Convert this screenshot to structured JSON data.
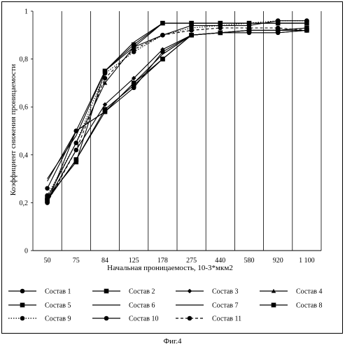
{
  "chart_data": {
    "type": "line",
    "title": "",
    "xlabel": "Начальная проницаемость, 10-3*мкм2",
    "ylabel": "Коэффициент снижения проницаемости",
    "categories": [
      "50",
      "75",
      "84",
      "125",
      "178",
      "275",
      "440",
      "580",
      "920",
      "1 100"
    ],
    "ylim": [
      0,
      1
    ],
    "yticks": [
      "0",
      "0,2",
      "0,4",
      "0,6",
      "0,8",
      "1"
    ],
    "grid": "vertical",
    "legend_placement": "bottom",
    "series": [
      {
        "name": "Состав 1",
        "marker": "circle",
        "dash": "solid",
        "values": [
          0.2,
          0.5,
          0.58,
          0.68,
          0.83,
          0.9,
          0.91,
          0.91,
          0.91,
          0.92
        ]
      },
      {
        "name": "Состав 2",
        "marker": "square",
        "dash": "solid",
        "values": [
          0.21,
          0.38,
          0.58,
          0.7,
          0.8,
          0.9,
          0.91,
          0.92,
          0.92,
          0.92
        ]
      },
      {
        "name": "Состав 3",
        "marker": "diamond",
        "dash": "solid",
        "values": [
          0.21,
          0.42,
          0.61,
          0.72,
          0.84,
          0.9,
          0.91,
          0.92,
          0.92,
          0.93
        ]
      },
      {
        "name": "Состав 4",
        "marker": "triangle",
        "dash": "solid",
        "values": [
          0.22,
          0.45,
          0.7,
          0.85,
          0.95,
          0.95,
          0.95,
          0.95,
          0.95,
          0.95
        ]
      },
      {
        "name": "Состав 5",
        "marker": "square",
        "dash": "solid",
        "values": [
          0.22,
          0.37,
          0.75,
          0.86,
          0.95,
          0.95,
          0.95,
          0.95,
          0.95,
          0.95
        ]
      },
      {
        "name": "Состав 6",
        "marker": "none",
        "dash": "solid",
        "values": [
          0.3,
          0.48,
          0.75,
          0.87,
          0.95,
          0.95,
          0.95,
          0.95,
          0.95,
          0.95
        ]
      },
      {
        "name": "Состав 7",
        "marker": "none",
        "dash": "solid",
        "values": [
          0.29,
          0.5,
          0.58,
          0.7,
          0.82,
          0.9,
          0.91,
          0.91,
          0.91,
          0.92
        ]
      },
      {
        "name": "Состав 8",
        "marker": "square",
        "dash": "solid",
        "values": [
          0.21,
          0.38,
          0.59,
          0.69,
          0.8,
          0.9,
          0.91,
          0.92,
          0.92,
          0.93
        ]
      },
      {
        "name": "Состав 9",
        "marker": "circle",
        "dash": "dotted",
        "values": [
          0.23,
          0.45,
          0.74,
          0.83,
          0.9,
          0.93,
          0.94,
          0.95,
          0.96,
          0.96
        ]
      },
      {
        "name": "Состав 10",
        "marker": "circle",
        "dash": "solid",
        "values": [
          0.26,
          0.5,
          0.75,
          0.85,
          0.9,
          0.94,
          0.94,
          0.94,
          0.96,
          0.96
        ]
      },
      {
        "name": "Состав 11",
        "marker": "circle",
        "dash": "dashed",
        "values": [
          0.2,
          0.42,
          0.72,
          0.84,
          0.9,
          0.92,
          0.93,
          0.93,
          0.93,
          0.92
        ]
      }
    ]
  },
  "caption": "Фиг.4"
}
